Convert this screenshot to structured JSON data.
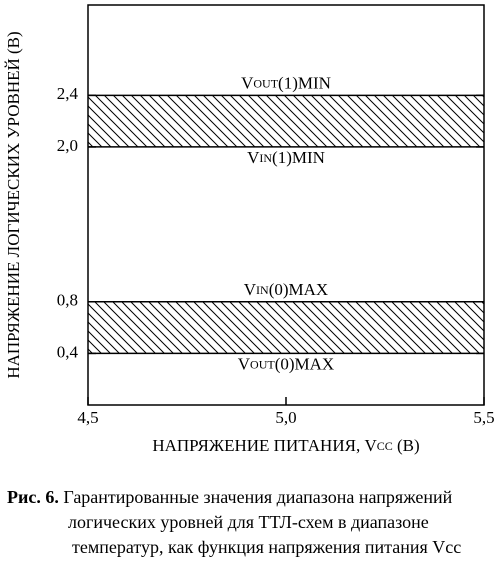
{
  "chart_data": {
    "type": "band",
    "y_label": "НАПРЯЖЕНИЕ ЛОГИЧЕСКИХ УРОВНЕЙ (В)",
    "x_label": {
      "main": "НАПРЯЖЕНИЕ ПИТАНИЯ, V",
      "sub": "CC",
      "rest": " (В)"
    },
    "xlim": [
      4.5,
      5.5
    ],
    "xticks": [
      {
        "value": 4.5,
        "label": "4,5"
      },
      {
        "value": 5.0,
        "label": "5,0"
      },
      {
        "value": 5.5,
        "label": "5,5"
      }
    ],
    "ylim": [
      0,
      3.1
    ],
    "yticks": [
      {
        "value": 0.4,
        "label": "0,4"
      },
      {
        "value": 0.8,
        "label": "0,8"
      },
      {
        "value": 2.0,
        "label": "2,0"
      },
      {
        "value": 2.4,
        "label": "2,4"
      }
    ],
    "bands": [
      {
        "low": 2.0,
        "high": 2.4,
        "upper_label": {
          "main": "V",
          "sub": "OUT",
          "rest": "(1)MIN"
        },
        "lower_label": {
          "main": "V",
          "sub": "IN",
          "rest": "(1)MIN"
        }
      },
      {
        "low": 0.4,
        "high": 0.8,
        "upper_label": {
          "main": "V",
          "sub": "IN",
          "rest": "(0)MAX"
        },
        "lower_label": {
          "main": "V",
          "sub": "OUT",
          "rest": "(0)MAX"
        }
      }
    ],
    "caption": {
      "label": "Рис. 6.",
      "lines": [
        "Гарантированные значения диапазона напряжений",
        "логических уровней для ТТЛ-схем в диапазоне",
        "температур, как функция напряжения питания Vcc"
      ]
    }
  }
}
